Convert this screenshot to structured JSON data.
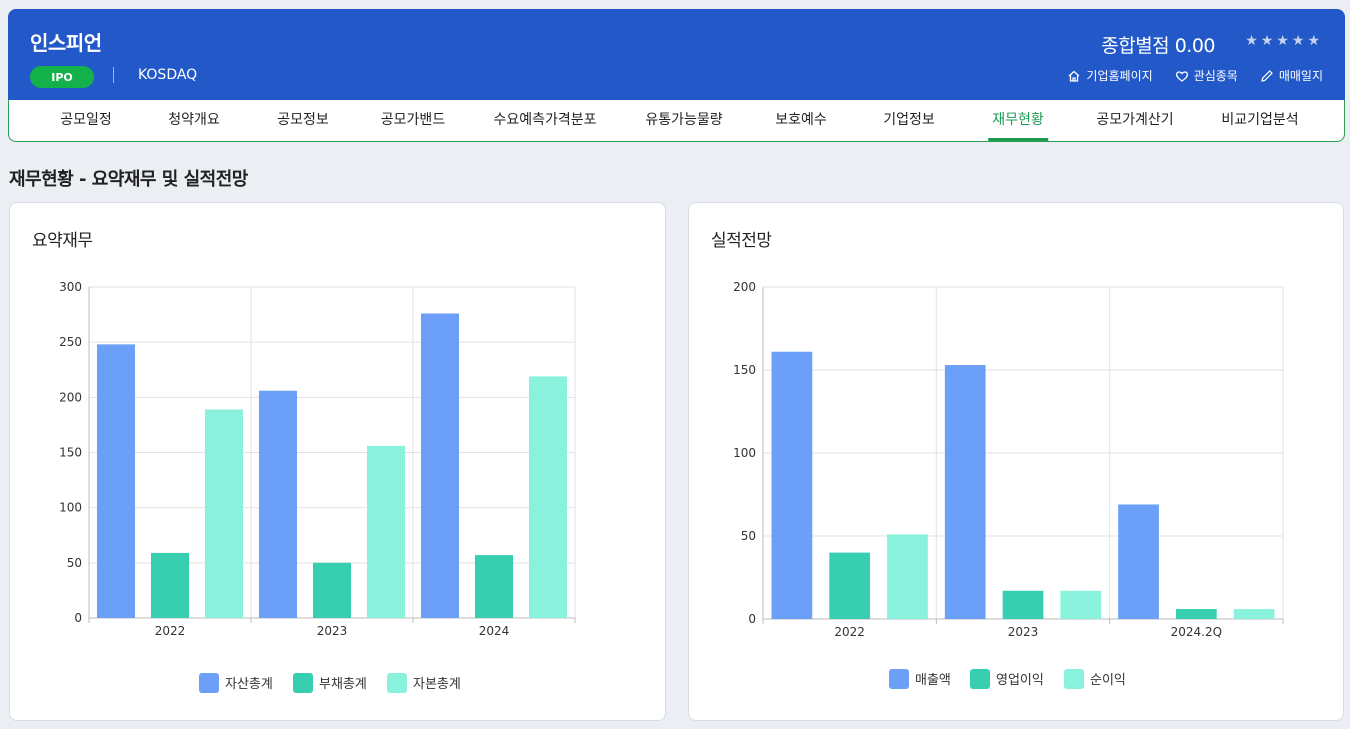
{
  "header": {
    "company_name": "인스피언",
    "badge": "IPO",
    "market": "KOSDAQ",
    "score_label": "종합별점 0.00",
    "stars": "★★★★★",
    "actions": [
      {
        "label": "기업홈페이지",
        "icon": "home-icon"
      },
      {
        "label": "관심종목",
        "icon": "heart-icon"
      },
      {
        "label": "매매일지",
        "icon": "pencil-icon"
      }
    ]
  },
  "tabs": [
    {
      "label": "공모일정"
    },
    {
      "label": "청약개요"
    },
    {
      "label": "공모정보"
    },
    {
      "label": "공모가밴드"
    },
    {
      "label": "수요예측가격분포"
    },
    {
      "label": "유통가능물량"
    },
    {
      "label": "보호예수"
    },
    {
      "label": "기업정보"
    },
    {
      "label": "재무현황",
      "active": true
    },
    {
      "label": "공모가계산기"
    },
    {
      "label": "비교기업분석"
    }
  ],
  "section_title": "재무현황 - 요약재무 및 실적전망",
  "colors": {
    "header_bg": "#2258c8",
    "accent_green": "#1d9a52",
    "series1": "#6b9ff8",
    "series2": "#38cfb0",
    "series3": "#8af2dc"
  },
  "chart_data": [
    {
      "type": "bar",
      "title": "요약재무",
      "categories": [
        "2022",
        "2023",
        "2024"
      ],
      "series": [
        {
          "name": "자산총계",
          "values": [
            248,
            206,
            276
          ]
        },
        {
          "name": "부채총계",
          "values": [
            59,
            50,
            57
          ]
        },
        {
          "name": "자본총계",
          "values": [
            189,
            156,
            219
          ]
        }
      ],
      "ylim": [
        0,
        300
      ],
      "yticks": [
        0,
        50,
        100,
        150,
        200,
        250,
        300
      ],
      "grid": true,
      "legend": "bottom"
    },
    {
      "type": "bar",
      "title": "실적전망",
      "categories": [
        "2022",
        "2023",
        "2024.2Q"
      ],
      "series": [
        {
          "name": "매출액",
          "values": [
            161,
            153,
            69
          ]
        },
        {
          "name": "영업이익",
          "values": [
            40,
            17,
            6
          ]
        },
        {
          "name": "순이익",
          "values": [
            51,
            17,
            6
          ]
        }
      ],
      "ylim": [
        0,
        200
      ],
      "yticks": [
        0,
        50,
        100,
        150,
        200
      ],
      "grid": true,
      "legend": "bottom"
    }
  ]
}
